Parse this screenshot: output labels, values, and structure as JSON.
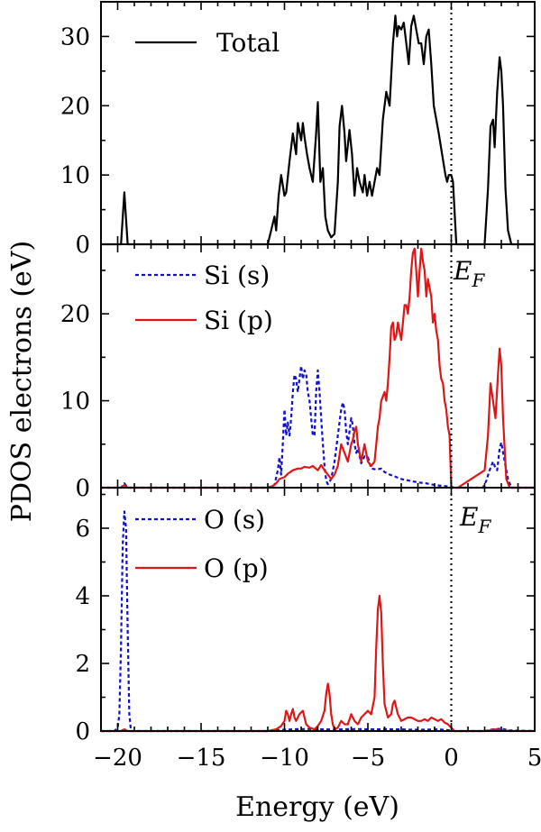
{
  "colors": {
    "total": "#000000",
    "s": "#1010d0",
    "p": "#e01515",
    "fermi": "#000000"
  },
  "chart_data": {
    "type": "line",
    "xlabel": "Energy (eV)",
    "ylabel": "PDOS electrons (eV)",
    "xlim": [
      -21,
      5
    ],
    "xticks": [
      -20,
      -15,
      -10,
      -5,
      0,
      5
    ],
    "xtick_labels": [
      "−20",
      "−15",
      "−10",
      "−5",
      "0",
      "5"
    ],
    "fermi_energy": 0,
    "fermi_label": {
      "main": "E",
      "sub": "F"
    },
    "panels": [
      {
        "ylim": [
          0,
          35
        ],
        "yticks": [
          0,
          10,
          20,
          30
        ],
        "show_fermi_label": false,
        "series": [
          {
            "name": "Total",
            "color_key": "total",
            "dash": false,
            "x": [
              -21,
              -19.8,
              -19.6,
              -19.4,
              -19.2,
              -11,
              -10.6,
              -10.5,
              -10.35,
              -10.2,
              -10.0,
              -9.9,
              -9.7,
              -9.5,
              -9.3,
              -9.2,
              -9.0,
              -8.9,
              -8.8,
              -8.65,
              -8.5,
              -8.3,
              -8.1,
              -8.0,
              -7.85,
              -7.7,
              -7.55,
              -7.4,
              -7.2,
              -7.0,
              -6.8,
              -6.7,
              -6.55,
              -6.4,
              -6.3,
              -6.1,
              -5.95,
              -5.8,
              -5.65,
              -5.5,
              -5.3,
              -5.2,
              -5.05,
              -4.9,
              -4.75,
              -4.6,
              -4.45,
              -4.3,
              -4.1,
              -3.9,
              -3.7,
              -3.5,
              -3.35,
              -3.25,
              -3.15,
              -3.0,
              -2.85,
              -2.7,
              -2.55,
              -2.4,
              -2.25,
              -2.1,
              -1.95,
              -1.8,
              -1.65,
              -1.5,
              -1.35,
              -1.2,
              -1.05,
              -0.9,
              -0.75,
              -0.55,
              -0.35,
              -0.25,
              -0.15,
              0.0,
              0.1,
              0.3,
              2.0,
              2.2,
              2.35,
              2.5,
              2.6,
              2.75,
              2.9,
              3.0,
              3.1,
              3.25,
              3.4,
              3.6,
              5
            ],
            "y": [
              0,
              0,
              7.5,
              0,
              0,
              0,
              4,
              2,
              7,
              10,
              7,
              7.5,
              12,
              16,
              13,
              17.5,
              15,
              17.5,
              15.5,
              13,
              11,
              9,
              16,
              20.5,
              9,
              11,
              4,
              2,
              1,
              1.5,
              9,
              17,
              20,
              16,
              12,
              16.5,
              13,
              7,
              11,
              9,
              7.5,
              10,
              7,
              9,
              7,
              9,
              11,
              10,
              18,
              22,
              20,
              29,
              33,
              30,
              31.5,
              31,
              32,
              29,
              26,
              31.5,
              33,
              31,
              29,
              29,
              26,
              30,
              31,
              26,
              20,
              18,
              16,
              13,
              10,
              9,
              10,
              10,
              9,
              0,
              0,
              8,
              17,
              18,
              14,
              22,
              27,
              25,
              20,
              8,
              2,
              0,
              0
            ]
          }
        ]
      },
      {
        "ylim": [
          0,
          28
        ],
        "yticks": [
          0,
          10,
          20
        ],
        "show_fermi_label": true,
        "series": [
          {
            "name": "Si (s)",
            "color_key": "s",
            "dash": true,
            "x": [
              -21,
              -20,
              -19.8,
              -19.6,
              -19.4,
              -11,
              -10.6,
              -10.4,
              -10.3,
              -10.2,
              -10.1,
              -10.0,
              -9.9,
              -9.8,
              -9.7,
              -9.6,
              -9.5,
              -9.4,
              -9.3,
              -9.2,
              -9.1,
              -9.0,
              -8.9,
              -8.8,
              -8.7,
              -8.6,
              -8.5,
              -8.4,
              -8.3,
              -8.2,
              -8.1,
              -8.0,
              -7.9,
              -7.8,
              -7.7,
              -7.6,
              -7.5,
              -7.4,
              -7.2,
              -7.0,
              -6.8,
              -6.6,
              -6.5,
              -6.4,
              -6.3,
              -6.2,
              -6.0,
              -5.9,
              -5.8,
              -5.7,
              -5.6,
              -5.4,
              -5.2,
              -5.0,
              -4.8,
              -4.5,
              -4.2,
              -4.0,
              -3.7,
              -3.4,
              -3.0,
              -2.5,
              -2.0,
              -1.5,
              -1.0,
              -0.5,
              0.0,
              0.2,
              0.4,
              1.9,
              2.1,
              2.3,
              2.5,
              2.6,
              2.75,
              2.9,
              3.0,
              3.2,
              3.4,
              3.6,
              5
            ],
            "y": [
              0,
              0,
              0,
              0.5,
              0,
              0,
              0.3,
              2,
              3.5,
              1.5,
              5,
              9,
              6,
              7.5,
              6,
              8,
              11,
              13,
              12.5,
              11,
              12.5,
              14,
              12.5,
              13.5,
              13,
              11,
              10,
              8,
              6,
              6,
              11,
              13.5,
              11,
              8,
              5,
              2.5,
              0.8,
              0.4,
              1,
              3,
              6,
              9,
              9.8,
              9,
              6.5,
              5,
              8,
              7.2,
              5,
              4,
              4.5,
              2.8,
              3.6,
              3.5,
              2.2,
              2.1,
              2.2,
              1.8,
              1.5,
              1.3,
              1.0,
              0.8,
              0.6,
              0.5,
              0.3,
              0.2,
              0.1,
              0,
              0,
              0,
              0.8,
              2,
              3,
              2.5,
              2,
              4.5,
              5.2,
              3,
              1,
              0,
              0
            ]
          },
          {
            "name": "Si (p)",
            "color_key": "p",
            "dash": false,
            "x": [
              -21,
              -20,
              -19.8,
              -19.6,
              -19.4,
              -11,
              -10.7,
              -10.5,
              -10.3,
              -10.0,
              -9.8,
              -9.5,
              -9.2,
              -9.0,
              -8.8,
              -8.5,
              -8.3,
              -8.0,
              -7.8,
              -7.6,
              -7.4,
              -7.2,
              -7.0,
              -6.8,
              -6.6,
              -6.4,
              -6.2,
              -6.0,
              -5.9,
              -5.8,
              -5.7,
              -5.6,
              -5.5,
              -5.4,
              -5.3,
              -5.2,
              -5.0,
              -4.8,
              -4.6,
              -4.5,
              -4.4,
              -4.3,
              -4.2,
              -4.0,
              -3.9,
              -3.8,
              -3.7,
              -3.6,
              -3.5,
              -3.4,
              -3.3,
              -3.2,
              -3.1,
              -3.0,
              -2.9,
              -2.8,
              -2.7,
              -2.6,
              -2.5,
              -2.4,
              -2.3,
              -2.2,
              -2.1,
              -2.0,
              -1.9,
              -1.8,
              -1.7,
              -1.6,
              -1.5,
              -1.4,
              -1.3,
              -1.2,
              -1.1,
              -1.0,
              -0.9,
              -0.8,
              -0.7,
              -0.6,
              -0.5,
              -0.4,
              -0.3,
              -0.2,
              -0.1,
              0.0,
              0.2,
              0.4,
              2.0,
              2.2,
              2.35,
              2.5,
              2.65,
              2.8,
              2.9,
              3.0,
              3.1,
              3.3,
              3.5,
              5
            ],
            "y": [
              0,
              0,
              0,
              0.3,
              0,
              0,
              0.2,
              0.5,
              1,
              1.2,
              1.6,
              2,
              2.2,
              2.2,
              2.4,
              2.3,
              2.5,
              2,
              2.6,
              2,
              1.5,
              1,
              1.5,
              2.5,
              5,
              4,
              3,
              5,
              5.5,
              6.5,
              7,
              5,
              4,
              3,
              4,
              5,
              3,
              2.5,
              3,
              5,
              7,
              8,
              10,
              11,
              10,
              12,
              15,
              18.5,
              19,
              17,
              17.5,
              19,
              18,
              17,
              19,
              21,
              21,
              20,
              22,
              25,
              27,
              27.5,
              25,
              22,
              25,
              27.5,
              26,
              25,
              22,
              24,
              23,
              22,
              19,
              20,
              18,
              17,
              14,
              12.5,
              12,
              10,
              9,
              7,
              6,
              0,
              0,
              0,
              2,
              6,
              12,
              10,
              8,
              13,
              16,
              14,
              8,
              1,
              0,
              0
            ]
          }
        ]
      },
      {
        "ylim": [
          0,
          7.2
        ],
        "yticks": [
          0,
          2,
          4,
          6
        ],
        "show_fermi_label": true,
        "series": [
          {
            "name": "O (s)",
            "color_key": "s",
            "dash": true,
            "x": [
              -21,
              -20.2,
              -20.0,
              -19.9,
              -19.8,
              -19.7,
              -19.6,
              -19.5,
              -19.4,
              -19.3,
              -19.2,
              -11,
              -10.5,
              -10.0,
              -9.5,
              -9.0,
              -8.5,
              -8.0,
              -7.5,
              -7.0,
              -6.5,
              -6.0,
              -5.5,
              -5.0,
              -4.5,
              -4.0,
              -3.5,
              -3.0,
              -2.5,
              -2.0,
              -1.5,
              -1.0,
              -0.5,
              0.0,
              0.2,
              0.4,
              2.0,
              2.5,
              3.0,
              3.5,
              5
            ],
            "y": [
              0,
              0,
              0.1,
              0.5,
              2.5,
              5.5,
              6.5,
              6,
              3,
              0.5,
              0,
              0,
              0.02,
              0.04,
              0.05,
              0.06,
              0.06,
              0.05,
              0.05,
              0.04,
              0.05,
              0.06,
              0.06,
              0.05,
              0.05,
              0.06,
              0.05,
              0.05,
              0.04,
              0.04,
              0.04,
              0.05,
              0.04,
              0.02,
              0,
              0,
              0,
              0.05,
              0.07,
              0.02,
              0
            ]
          },
          {
            "name": "O (p)",
            "color_key": "p",
            "dash": false,
            "x": [
              -21,
              -20.0,
              -19.8,
              -19.6,
              -19.4,
              -11,
              -10.5,
              -10.2,
              -10.0,
              -9.9,
              -9.8,
              -9.7,
              -9.6,
              -9.5,
              -9.4,
              -9.3,
              -9.1,
              -8.9,
              -8.7,
              -8.5,
              -8.2,
              -8.0,
              -7.8,
              -7.6,
              -7.5,
              -7.4,
              -7.3,
              -7.2,
              -7.1,
              -7.0,
              -6.8,
              -6.6,
              -6.4,
              -6.2,
              -6.0,
              -5.8,
              -5.6,
              -5.5,
              -5.4,
              -5.2,
              -5.0,
              -4.8,
              -4.6,
              -4.5,
              -4.4,
              -4.3,
              -4.2,
              -4.1,
              -4.0,
              -3.8,
              -3.6,
              -3.5,
              -3.4,
              -3.3,
              -3.2,
              -3.0,
              -2.8,
              -2.6,
              -2.4,
              -2.2,
              -2.0,
              -1.8,
              -1.6,
              -1.4,
              -1.2,
              -1.0,
              -0.8,
              -0.6,
              -0.4,
              -0.2,
              0.0,
              0.2,
              0.4,
              2.0,
              2.3,
              2.6,
              2.9,
              3.2,
              3.5,
              5
            ],
            "y": [
              0,
              0,
              0,
              0.05,
              0,
              0,
              0.05,
              0.15,
              0.3,
              0.6,
              0.5,
              0.3,
              0.5,
              0.65,
              0.4,
              0.3,
              0.5,
              0.6,
              0.2,
              0.1,
              0.05,
              0.15,
              0.3,
              0.6,
              1.1,
              1.4,
              1.1,
              0.5,
              0.2,
              0.05,
              0.1,
              0.3,
              0.2,
              0.2,
              0.5,
              0.3,
              0.2,
              0.3,
              0.4,
              0.5,
              0.6,
              0.5,
              1.0,
              2.5,
              3.6,
              4.0,
              3.5,
              2.0,
              0.8,
              0.4,
              0.5,
              0.8,
              0.9,
              0.7,
              0.5,
              0.3,
              0.35,
              0.4,
              0.4,
              0.35,
              0.3,
              0.3,
              0.35,
              0.3,
              0.4,
              0.35,
              0.3,
              0.35,
              0.25,
              0.2,
              0.1,
              0,
              0,
              0,
              0.02,
              0.05,
              0.03,
              0.02,
              0,
              0
            ]
          }
        ]
      }
    ]
  }
}
